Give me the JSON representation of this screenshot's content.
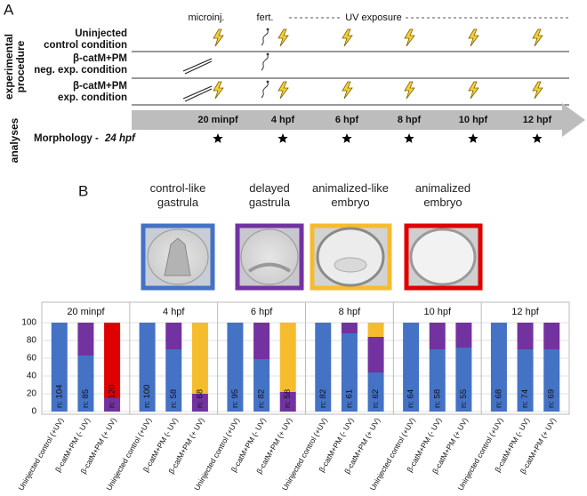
{
  "panel_a": {
    "label": "A",
    "headers": {
      "microinjection": "microinj.",
      "fertilization": "fert.",
      "uv": "UV exposure"
    },
    "side_labels": {
      "procedure": [
        "experimental",
        "procedure"
      ],
      "analyses": "analyses"
    },
    "rows": [
      {
        "lines": [
          "Uninjected",
          "control condition"
        ]
      },
      {
        "lines": [
          "β-catM+PM",
          "neg. exp. condition"
        ]
      },
      {
        "lines": [
          "β-catM+PM",
          "exp. condition"
        ]
      }
    ],
    "timepoints": [
      "20 minpf",
      "4 hpf",
      "6 hpf",
      "8 hpf",
      "10 hpf",
      "12 hpf"
    ],
    "morphology_label": "Morphology -",
    "morphology_time": "24 hpf"
  },
  "panel_b_label": "B",
  "chart_data": {
    "type": "stacked_bar",
    "groups": [
      "20 minpf",
      "4 hpf",
      "6 hpf",
      "8 hpf",
      "10 hpf",
      "12 hpf"
    ],
    "categories": [
      "Uninjected control (+UV)",
      "β-catM+PM (- UV)",
      "β-catM+PM (+ UV)",
      "Uninjected control (+UV)",
      "β-catM+PM (- UV)",
      "β-catM+PM (+ UV)",
      "Uninjected control (+UV)",
      "β-catM+PM (- UV)",
      "β-catM+PM (+ UV)",
      "Uninjected control (+UV)",
      "β-catM+PM (- UV)",
      "β-catM+PM (+ UV)",
      "Uninjected control (+UV)",
      "β-catM+PM (- UV)",
      "β-catM+PM (+ UV)",
      "Uninjected control (+UV)",
      "β-catM+PM (- UV)",
      "β-catM+PM (+ UV)"
    ],
    "n_labels": [
      "n: 104",
      "n: 85",
      "n: 120",
      "n: 100",
      "n: 58",
      "n: 68",
      "n: 95",
      "n: 82",
      "n: 58",
      "n: 82",
      "n: 61",
      "n: 62",
      "n: 64",
      "n: 58",
      "n: 55",
      "n: 68",
      "n: 74",
      "n: 69"
    ],
    "series": [
      {
        "name": "control-like gastrula",
        "color": "#4472c4",
        "values": [
          100,
          63,
          null,
          100,
          70,
          null,
          100,
          59,
          null,
          100,
          88,
          44,
          100,
          70,
          72,
          100,
          70,
          70
        ]
      },
      {
        "name": "delayed gastrula",
        "color": "#7232a0",
        "values": [
          null,
          37,
          15,
          null,
          30,
          20,
          null,
          41,
          22,
          null,
          12,
          40,
          null,
          30,
          28,
          null,
          30,
          30
        ]
      },
      {
        "name": "animalized-like embryo",
        "color": "#f5bc2e",
        "values": [
          null,
          null,
          null,
          null,
          null,
          80,
          null,
          null,
          78,
          null,
          null,
          16,
          null,
          null,
          null,
          null,
          null,
          null
        ]
      },
      {
        "name": "animalized embryo",
        "color": "#e00000",
        "values": [
          null,
          null,
          85,
          null,
          null,
          null,
          null,
          null,
          null,
          null,
          null,
          null,
          null,
          null,
          null,
          null,
          null,
          null
        ]
      }
    ],
    "ylim": [
      0,
      100
    ],
    "yticks": [
      0,
      20,
      40,
      60,
      80,
      100
    ],
    "grid": true
  }
}
